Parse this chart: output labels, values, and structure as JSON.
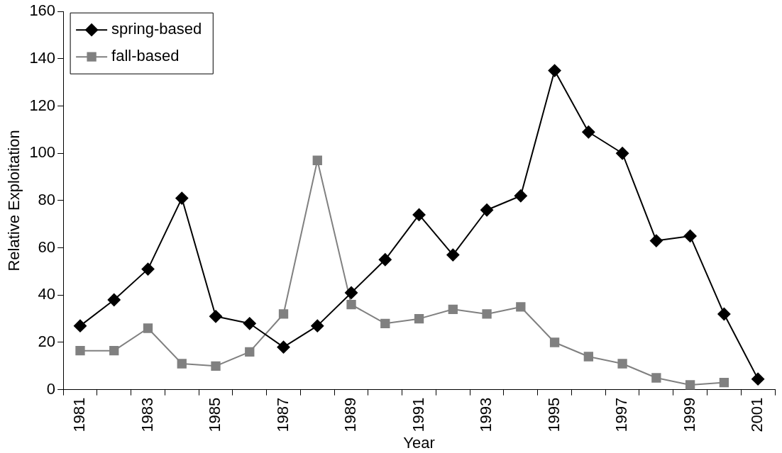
{
  "chart_data": {
    "type": "line",
    "xlabel": "Year",
    "ylabel": "Relative Exploitation",
    "categories": [
      "1981",
      null,
      "1983",
      null,
      "1985",
      null,
      "1987",
      null,
      "1989",
      null,
      "1991",
      null,
      "1993",
      null,
      "1995",
      null,
      "1997",
      null,
      "1999",
      null,
      "2001"
    ],
    "series": [
      {
        "name": "spring-based",
        "color": "#000000",
        "marker": "diamond",
        "values": [
          27,
          38,
          51,
          81,
          31,
          28,
          18,
          27,
          41,
          55,
          74,
          57,
          76,
          82,
          135,
          109,
          100,
          63,
          65,
          32,
          4.5
        ]
      },
      {
        "name": "fall-based",
        "color": "#808080",
        "marker": "square",
        "values": [
          16.5,
          16.5,
          26,
          11,
          10,
          16,
          32,
          97,
          36,
          28,
          30,
          34,
          32,
          35,
          20,
          14,
          11,
          5,
          2,
          3,
          null
        ]
      }
    ],
    "ylim": [
      0,
      160
    ],
    "yticks": [
      0,
      20,
      40,
      60,
      80,
      100,
      120,
      140,
      160
    ],
    "grid": false,
    "legend": "top left"
  }
}
